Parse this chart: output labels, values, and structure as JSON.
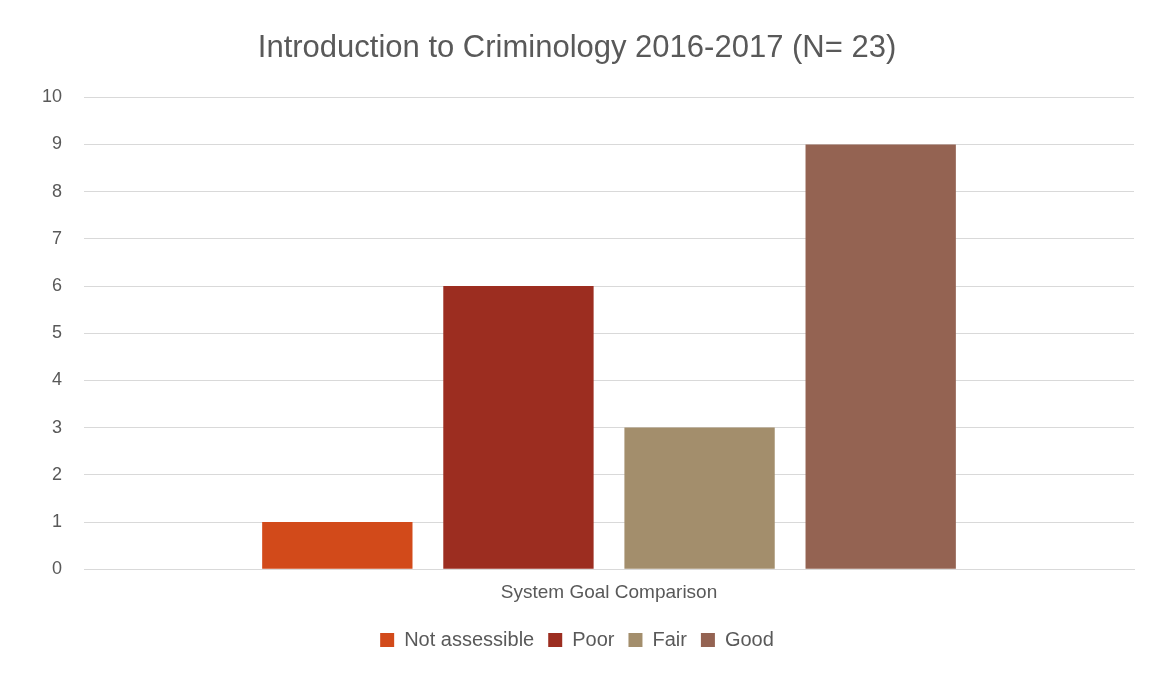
{
  "chart_data": {
    "type": "bar",
    "title": "Introduction to Criminology 2016-2017 (N= 23)",
    "categories": [
      "System Goal Comparison"
    ],
    "series": [
      {
        "name": "Not assessible",
        "color": "#d24a1a",
        "values": [
          1
        ]
      },
      {
        "name": "Poor",
        "color": "#9c2d20",
        "values": [
          6
        ]
      },
      {
        "name": "Fair",
        "color": "#a38e6c",
        "values": [
          3
        ]
      },
      {
        "name": "Good",
        "color": "#946352",
        "values": [
          9
        ]
      }
    ],
    "ylim": [
      0,
      10
    ],
    "yticks": [
      0,
      1,
      2,
      3,
      4,
      5,
      6,
      7,
      8,
      9,
      10
    ],
    "grid": "y",
    "legend": "bottom"
  }
}
